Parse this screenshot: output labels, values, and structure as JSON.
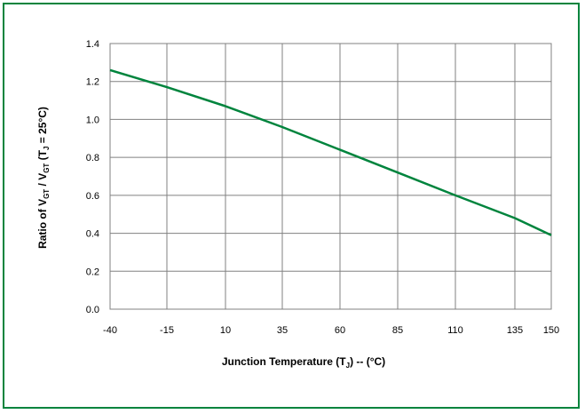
{
  "chart_data": {
    "type": "line",
    "xlabel": "Junction Temperature (TJ) -- (°C)",
    "ylabel": "Ratio of VGT / VGT (TJ = 25°C)",
    "xlabel_parts": {
      "pre": "Junction Temperature (T",
      "sub": "J",
      "post": ") -- (°C)"
    },
    "ylabel_parts": {
      "pre": "Ratio of V",
      "sub1": "GT",
      "mid": " / V",
      "sub2": "GT",
      "mid2": " (T",
      "sub3": "J",
      "post": " = 25°C)"
    },
    "x_ticks": [
      "-40",
      "-15",
      "10",
      "35",
      "60",
      "85",
      "110",
      "135",
      "150"
    ],
    "x_tick_values": [
      -40,
      -15,
      10,
      35,
      60,
      85,
      110,
      135,
      150
    ],
    "xlim": [
      -40,
      150
    ],
    "ylim": [
      0,
      1.4
    ],
    "y_ticks": [
      "0.0",
      "0.2",
      "0.4",
      "0.6",
      "0.8",
      "1.0",
      "1.2",
      "1.4"
    ],
    "y_tick_values": [
      0,
      0.2,
      0.4,
      0.6,
      0.8,
      1.0,
      1.2,
      1.4
    ],
    "grid": true,
    "series": [
      {
        "color": "#00843d",
        "x": [
          -40,
          -15,
          10,
          35,
          60,
          85,
          110,
          135,
          150
        ],
        "y": [
          1.26,
          1.17,
          1.07,
          0.96,
          0.84,
          0.72,
          0.6,
          0.48,
          0.39
        ]
      }
    ]
  }
}
